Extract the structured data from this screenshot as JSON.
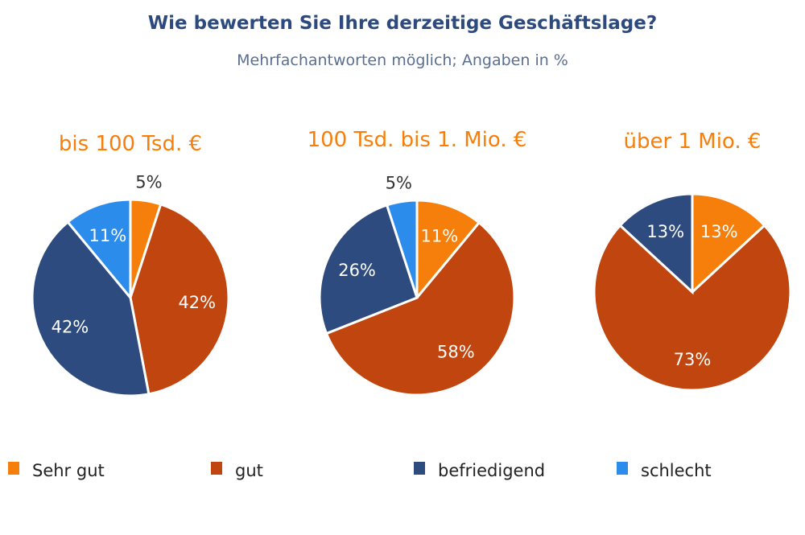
{
  "chart_data": {
    "type": "pie",
    "title": "Wie bewerten Sie Ihre derzeitige Geschäftslage?",
    "subtitle": "Mehrfachantworten möglich; Angaben in %",
    "categories": [
      "Sehr gut",
      "gut",
      "befriedigend",
      "schlecht"
    ],
    "colors": [
      "#f57f0a",
      "#c1450f",
      "#2d4b7f",
      "#2b8cec"
    ],
    "legend_position": "bottom",
    "pies": [
      {
        "title": "bis 100 Tsd. €",
        "values": [
          5,
          42,
          42,
          11
        ],
        "labels": [
          "5%",
          "42%",
          "42%",
          "11%"
        ]
      },
      {
        "title": "100 Tsd. bis 1. Mio. €",
        "values": [
          11,
          58,
          26,
          5
        ],
        "labels": [
          "11%",
          "58%",
          "26%",
          "5%"
        ]
      },
      {
        "title": "über 1 Mio. €",
        "values": [
          13,
          73,
          13,
          0
        ],
        "labels": [
          "13%",
          "73%",
          "13%",
          ""
        ]
      }
    ]
  }
}
